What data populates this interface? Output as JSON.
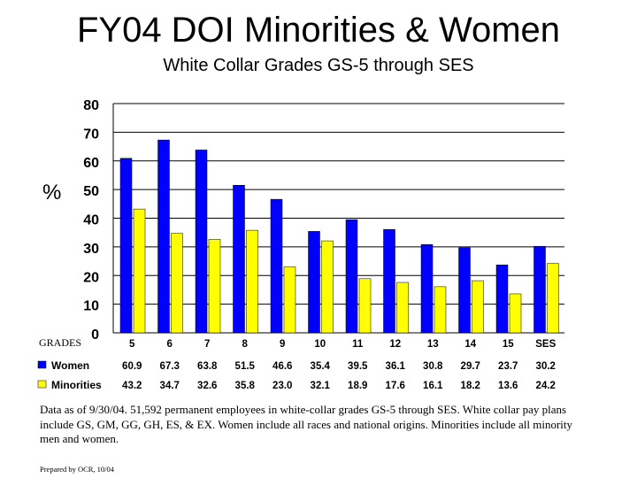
{
  "title": "FY04 DOI Minorities & Women",
  "subtitle": "White Collar Grades GS-5 through SES",
  "ylabel": "%",
  "xlabel": "GRADES",
  "note": "Data as of 9/30/04. 51,592 permanent employees in white-collar grades GS-5 through SES. White collar pay plans include GS, GM, GG, GH, ES, & EX. Women include all races and national origins. Minorities include all minority men and women.",
  "credit": "Prepared by OCR, 10/04",
  "chart_data": {
    "type": "bar",
    "categories": [
      "5",
      "6",
      "7",
      "8",
      "9",
      "10",
      "11",
      "12",
      "13",
      "14",
      "15",
      "SES"
    ],
    "series": [
      {
        "name": "Women",
        "color": "#0000ff",
        "values": [
          60.9,
          67.3,
          63.8,
          51.5,
          46.6,
          35.4,
          39.5,
          36.1,
          30.8,
          29.7,
          23.7,
          30.2
        ]
      },
      {
        "name": "Minorities",
        "color": "#ffff00",
        "values": [
          43.2,
          34.7,
          32.6,
          35.8,
          23.0,
          32.1,
          18.9,
          17.6,
          16.1,
          18.2,
          13.6,
          24.2
        ]
      }
    ],
    "value_labels": [
      [
        "60.9",
        "67.3",
        "63.8",
        "51.5",
        "46.6",
        "35.4",
        "39.5",
        "36.1",
        "30.8",
        "29.7",
        "23.7",
        "30.2"
      ],
      [
        "43.2",
        "34.7",
        "32.6",
        "35.8",
        "23.0",
        "32.1",
        "18.9",
        "17.6",
        "16.1",
        "18.2",
        "13.6",
        "24.2"
      ]
    ],
    "ylim": [
      0,
      80
    ],
    "yticks": [
      "0",
      "10",
      "20",
      "30",
      "40",
      "50",
      "60",
      "70",
      "80"
    ],
    "grid": true,
    "legend": "data-table-below"
  }
}
